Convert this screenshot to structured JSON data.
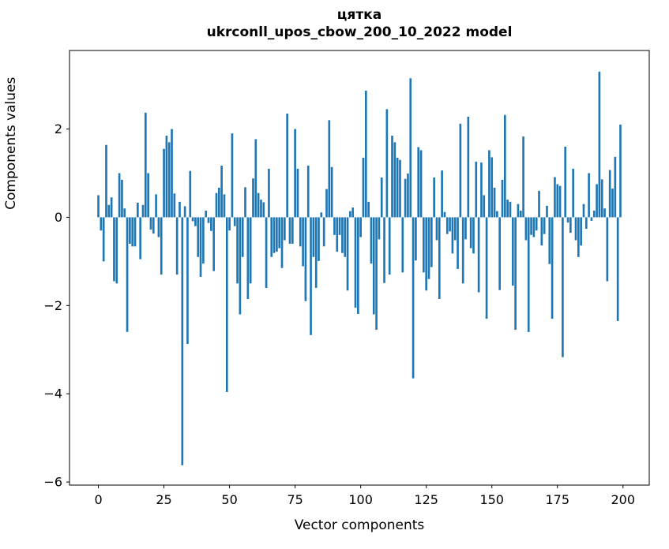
{
  "figure": {
    "title_line1": "цятка",
    "title_line2": "ukrconll_upos_cbow_200_10_2022 model"
  },
  "chart_data": {
    "type": "bar",
    "title": "цятка",
    "subtitle": "ukrconll_upos_cbow_200_10_2022 model",
    "xlabel": "Vector components",
    "ylabel": "Components values",
    "legend": "none",
    "grid": false,
    "bar_color": "#1f77b4",
    "x_ticks": [
      0,
      25,
      50,
      75,
      100,
      125,
      150,
      175,
      200
    ],
    "y_ticks": [
      -6,
      -4,
      -2,
      0,
      2
    ],
    "xlim": [
      -11,
      210
    ],
    "ylim": [
      -6.07,
      3.78
    ],
    "x_start": 0,
    "values": [
      0.5,
      -0.3,
      -1.0,
      1.64,
      0.28,
      0.45,
      -1.45,
      -1.5,
      1.0,
      0.85,
      0.2,
      -2.6,
      -0.6,
      -0.66,
      -0.66,
      0.33,
      -0.95,
      0.28,
      2.37,
      1.0,
      -0.28,
      -0.37,
      0.52,
      -0.45,
      -1.3,
      1.55,
      1.85,
      1.7,
      2.0,
      0.54,
      -1.3,
      0.35,
      -5.62,
      0.25,
      -2.87,
      1.05,
      -0.09,
      -0.2,
      -0.9,
      -1.35,
      -1.05,
      0.15,
      -0.13,
      -0.31,
      -1.22,
      0.55,
      0.67,
      1.17,
      0.52,
      -3.96,
      -0.3,
      1.9,
      -0.2,
      -1.5,
      -2.2,
      -0.9,
      0.68,
      -1.85,
      -1.5,
      0.88,
      1.77,
      0.55,
      0.4,
      0.34,
      -1.6,
      1.1,
      -0.9,
      -0.81,
      -0.78,
      -0.7,
      -1.15,
      -0.52,
      2.35,
      -0.6,
      -0.6,
      2.0,
      1.1,
      -0.66,
      -1.11,
      -1.9,
      1.17,
      -2.67,
      -0.9,
      -1.6,
      -0.99,
      0.11,
      -0.66,
      0.64,
      2.2,
      1.14,
      -0.4,
      -0.78,
      -0.4,
      -0.81,
      -0.9,
      -1.66,
      0.14,
      0.22,
      -2.05,
      -2.19,
      -0.45,
      1.35,
      2.87,
      0.35,
      -1.05,
      -2.2,
      -2.55,
      -0.5,
      0.9,
      -1.49,
      2.45,
      -1.3,
      1.85,
      1.7,
      1.35,
      1.3,
      -1.25,
      0.87,
      0.99,
      3.15,
      -3.65,
      -0.98,
      1.59,
      1.52,
      -1.25,
      -1.66,
      -1.4,
      -1.13,
      0.9,
      -0.52,
      -1.85,
      1.06,
      0.12,
      -0.38,
      -0.32,
      -0.82,
      -0.52,
      -1.17,
      2.12,
      -1.5,
      -0.5,
      2.28,
      -0.7,
      -0.82,
      1.26,
      -1.7,
      1.24,
      0.5,
      -2.3,
      1.52,
      1.36,
      0.67,
      0.14,
      -1.65,
      0.85,
      2.32,
      0.4,
      0.35,
      -1.55,
      -2.55,
      0.3,
      0.15,
      1.83,
      -0.52,
      -2.6,
      -0.4,
      -0.45,
      -0.3,
      0.6,
      -0.64,
      -0.38,
      0.26,
      -1.06,
      -2.3,
      0.91,
      0.75,
      0.71,
      -3.17,
      1.6,
      -0.12,
      -0.35,
      1.1,
      -0.52,
      -0.9,
      -0.64,
      0.3,
      -0.26,
      1.0,
      -0.08,
      0.15,
      0.75,
      3.3,
      0.86,
      0.2,
      -1.45,
      1.07,
      0.65,
      1.37,
      -2.35,
      2.1
    ]
  }
}
